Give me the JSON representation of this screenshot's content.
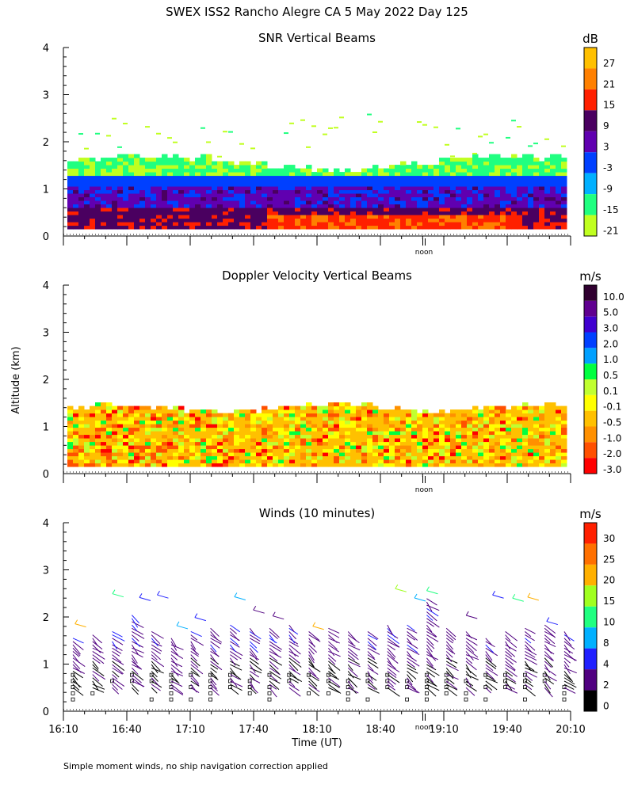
{
  "page": {
    "title": "SWEX ISS2 Rancho Alegre CA   5 May 2022 Day 125",
    "y_axis_label": "Altitude (km)",
    "x_axis_label": "Time (UT)",
    "footnote": "Simple moment winds, no ship navigation correction applied",
    "noon_label": "noon"
  },
  "chart_data": [
    {
      "type": "heatmap",
      "title": "SNR Vertical Beams",
      "ylim": [
        0,
        4
      ],
      "yticks": [
        "0",
        "1",
        "2",
        "3",
        "4"
      ],
      "xlabel": "Time (UT)",
      "ylabel": "Altitude (km)",
      "colorbar_unit": "dB",
      "colorbar_labels": [
        "27",
        "21",
        "15",
        "9",
        "3",
        "-3",
        "-9",
        "-15",
        "-21"
      ],
      "colorbar_colors": [
        "#ffc000",
        "#ff8000",
        "#ff2000",
        "#4a0060",
        "#6000b0",
        "#0040ff",
        "#00b0ff",
        "#20ff80",
        "#c0ff20"
      ],
      "dominant_value_bands": [
        {
          "altitude_km": [
            0.15,
            0.6
          ],
          "value_db": 9
        },
        {
          "altitude_km": [
            0.6,
            1.25
          ],
          "value_db": -3
        },
        {
          "altitude_km": [
            1.25,
            1.65
          ],
          "value_db": -15
        }
      ]
    },
    {
      "type": "heatmap",
      "title": "Doppler Velocity Vertical Beams",
      "ylim": [
        0,
        4
      ],
      "yticks": [
        "0",
        "1",
        "2",
        "3",
        "4"
      ],
      "colorbar_unit": "m/s",
      "colorbar_labels": [
        "10.0",
        "5.0",
        "3.0",
        "2.0",
        "1.0",
        "0.5",
        "0.1",
        "-0.1",
        "-0.5",
        "-1.0",
        "-2.0",
        "-3.0"
      ],
      "colorbar_colors": [
        "#300030",
        "#600090",
        "#4000d0",
        "#0040ff",
        "#00a0ff",
        "#00ff40",
        "#c0ff30",
        "#ffff00",
        "#ffc000",
        "#ff9000",
        "#ff5000",
        "#ff0000"
      ],
      "dominant_value_bands": [
        {
          "altitude_km": [
            0.15,
            1.35
          ],
          "value_ms": -0.5
        }
      ]
    },
    {
      "type": "scatter",
      "title": "Winds (10 minutes)",
      "ylim": [
        0,
        4
      ],
      "yticks": [
        "0",
        "1",
        "2",
        "3",
        "4"
      ],
      "xticks": [
        "16:10",
        "16:40",
        "17:10",
        "17:40",
        "18:10",
        "18:40",
        "19:10",
        "19:40",
        "20:10"
      ],
      "xlim_hours": [
        16.1667,
        20.1667
      ],
      "colorbar_unit": "m/s",
      "colorbar_labels": [
        "30",
        "25",
        "20",
        "15",
        "10",
        "8",
        "4",
        "2",
        "0"
      ],
      "colorbar_colors": [
        "#ff2000",
        "#ff7000",
        "#ffb000",
        "#a0ff20",
        "#20ff80",
        "#00b0ff",
        "#2020ff",
        "#500080",
        "#000000"
      ],
      "profile_top_km": [
        1.6,
        1.65,
        1.7,
        2.1,
        1.75,
        1.6,
        1.75,
        1.8,
        1.85,
        1.8,
        1.8,
        1.9,
        1.75,
        1.8,
        1.7,
        1.75,
        1.85,
        1.9,
        2.4,
        1.8,
        1.7,
        1.6,
        1.7,
        1.8,
        1.9,
        1.75
      ]
    }
  ]
}
